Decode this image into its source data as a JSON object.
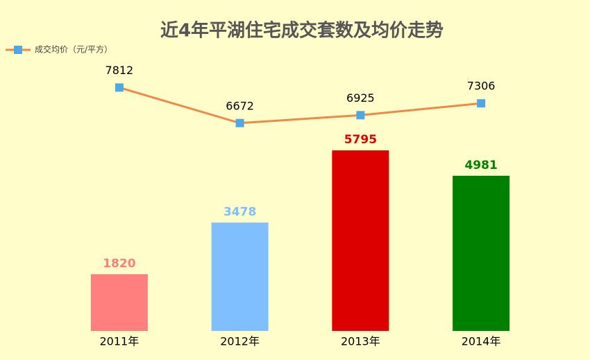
{
  "chart_data": {
    "type": "bar",
    "title": "近4年平湖住宅成交套数及均价走势",
    "categories": [
      "2011年",
      "2012年",
      "2013年",
      "2014年"
    ],
    "values": [
      1820,
      3478,
      5795,
      4981
    ],
    "colors": [
      "#ff7f7f",
      "#80bfff",
      "#dd0000",
      "#008000"
    ],
    "ylim": [
      0,
      10000
    ],
    "y2lim": [
      0,
      10000
    ],
    "legend": "top-left",
    "series": [
      {
        "name": "成交均价（元/平方）",
        "type": "line",
        "axis": "y2",
        "color": "#f08848",
        "marker_color": "#4ea8e6",
        "values": [
          7812,
          6672,
          6925,
          7306
        ]
      }
    ]
  }
}
